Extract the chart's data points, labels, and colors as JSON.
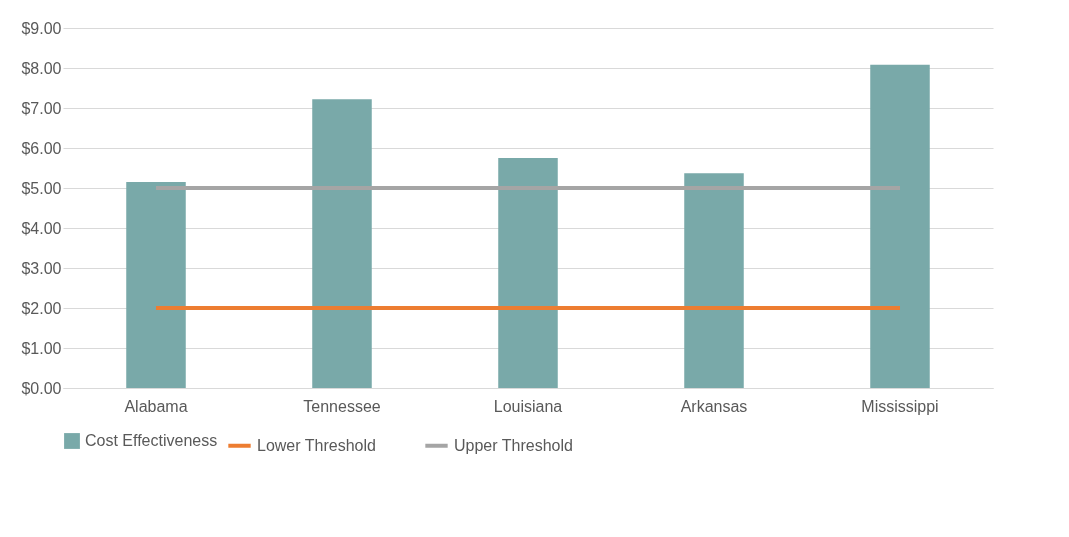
{
  "chart_data": {
    "type": "bar",
    "categories": [
      "Alabama",
      "Tennessee",
      "Louisiana",
      "Arkansas",
      "Mississippi"
    ],
    "series": [
      {
        "name": "Cost Effectiveness",
        "color": "#79a9a9",
        "values": [
          5.15,
          7.22,
          5.75,
          5.37,
          8.08
        ]
      },
      {
        "name": "Lower Threshold",
        "type": "line",
        "color": "#ed7d31",
        "values": [
          2,
          2,
          2,
          2,
          2
        ]
      },
      {
        "name": "Upper Threshold",
        "type": "line",
        "color": "#a5a5a5",
        "values": [
          5,
          5,
          5,
          5,
          5
        ]
      }
    ],
    "ylim": [
      0,
      9
    ],
    "yticks": [
      {
        "value": 0,
        "label": "$0.00"
      },
      {
        "value": 1,
        "label": "$1.00"
      },
      {
        "value": 2,
        "label": "$2.00"
      },
      {
        "value": 3,
        "label": "$3.00"
      },
      {
        "value": 4,
        "label": "$4.00"
      },
      {
        "value": 5,
        "label": "$5.00"
      },
      {
        "value": 6,
        "label": "$6.00"
      },
      {
        "value": 7,
        "label": "$7.00"
      },
      {
        "value": 8,
        "label": "$8.00"
      },
      {
        "value": 9,
        "label": "$9.00"
      }
    ],
    "grid": "y",
    "legend": "bottom",
    "marker": "none",
    "line_style": "solid"
  }
}
